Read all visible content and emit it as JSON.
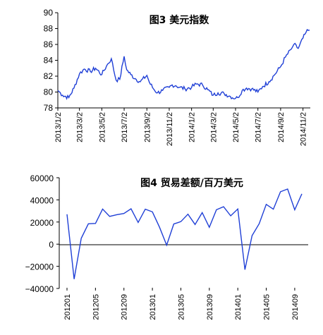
{
  "chart_data": [
    {
      "type": "line",
      "title": "图3 美元指数",
      "xlabel": "",
      "ylabel": "",
      "ylim": [
        78,
        90
      ],
      "yticks": [
        78,
        80,
        82,
        84,
        86,
        88,
        90
      ],
      "x_tick_labels": [
        "2013/1/2",
        "2013/3/2",
        "2013/5/2",
        "2013/7/2",
        "2013/9/2",
        "2013/11/2",
        "2014/1/2",
        "2014/3/2",
        "2014/5/2",
        "2014/7/2",
        "2014/9/2",
        "2014/11/2"
      ],
      "grid": false,
      "series": [
        {
          "color": "#1f3fd6",
          "x": [
            "2013/1/2",
            "2013/1/15",
            "2013/2/1",
            "2013/2/15",
            "2013/3/2",
            "2013/3/15",
            "2013/4/1",
            "2013/4/15",
            "2013/5/2",
            "2013/5/15",
            "2013/5/28",
            "2013/6/10",
            "2013/6/20",
            "2013/7/2",
            "2013/7/9",
            "2013/7/20",
            "2013/8/1",
            "2013/8/15",
            "2013/9/2",
            "2013/9/9",
            "2013/9/20",
            "2013/10/1",
            "2013/10/15",
            "2013/11/2",
            "2013/11/10",
            "2013/11/20",
            "2013/12/1",
            "2013/12/15",
            "2014/1/2",
            "2014/1/15",
            "2014/2/1",
            "2014/2/15",
            "2014/3/2",
            "2014/3/15",
            "2014/4/1",
            "2014/4/15",
            "2014/5/2",
            "2014/5/8",
            "2014/5/20",
            "2014/6/1",
            "2014/6/15",
            "2014/7/2",
            "2014/7/15",
            "2014/8/1",
            "2014/8/15",
            "2014/9/2",
            "2014/9/15",
            "2014/10/1",
            "2014/10/8",
            "2014/10/20",
            "2014/11/2",
            "2014/11/10",
            "2014/11/20"
          ],
          "values": [
            80.2,
            79.6,
            79.3,
            80.5,
            82.3,
            82.9,
            82.6,
            83.0,
            82.2,
            83.3,
            84.2,
            81.5,
            81.6,
            84.5,
            82.8,
            82.2,
            81.7,
            81.3,
            82.1,
            81.2,
            80.4,
            79.9,
            80.2,
            80.6,
            80.9,
            80.8,
            80.6,
            80.4,
            80.6,
            81.0,
            80.9,
            80.3,
            79.6,
            79.9,
            79.8,
            79.5,
            79.2,
            79.3,
            80.2,
            80.5,
            80.4,
            80.0,
            80.7,
            81.3,
            82.1,
            83.2,
            84.4,
            85.4,
            86.0,
            85.5,
            86.8,
            87.5,
            87.8
          ]
        }
      ]
    },
    {
      "type": "line",
      "title": "图4 贸易差额/百万美元",
      "xlabel": "",
      "ylabel": "",
      "ylim": [
        -40000,
        60000
      ],
      "yticks": [
        -40000,
        -20000,
        0,
        20000,
        40000,
        60000
      ],
      "x_tick_labels": [
        "201201",
        "201205",
        "201209",
        "201301",
        "201305",
        "201309",
        "201401",
        "201405",
        "201409"
      ],
      "grid": false,
      "series": [
        {
          "color": "#1f3fd6",
          "x": [
            "201201",
            "201202",
            "201203",
            "201204",
            "201205",
            "201206",
            "201207",
            "201208",
            "201209",
            "201210",
            "201211",
            "201212",
            "201301",
            "201302",
            "201303",
            "201304",
            "201305",
            "201306",
            "201307",
            "201308",
            "201309",
            "201310",
            "201311",
            "201312",
            "201401",
            "201402",
            "201403",
            "201404",
            "201405",
            "201406",
            "201407",
            "201408",
            "201409",
            "201410"
          ],
          "values": [
            27000,
            -31500,
            5300,
            18400,
            18700,
            31700,
            25100,
            26600,
            27700,
            32000,
            19600,
            31600,
            29200,
            15300,
            -900,
            18200,
            20400,
            27100,
            17800,
            28500,
            15200,
            31100,
            33800,
            25600,
            31800,
            -23000,
            7700,
            18500,
            35900,
            31600,
            47300,
            49800,
            31000,
            45400
          ]
        }
      ]
    }
  ]
}
